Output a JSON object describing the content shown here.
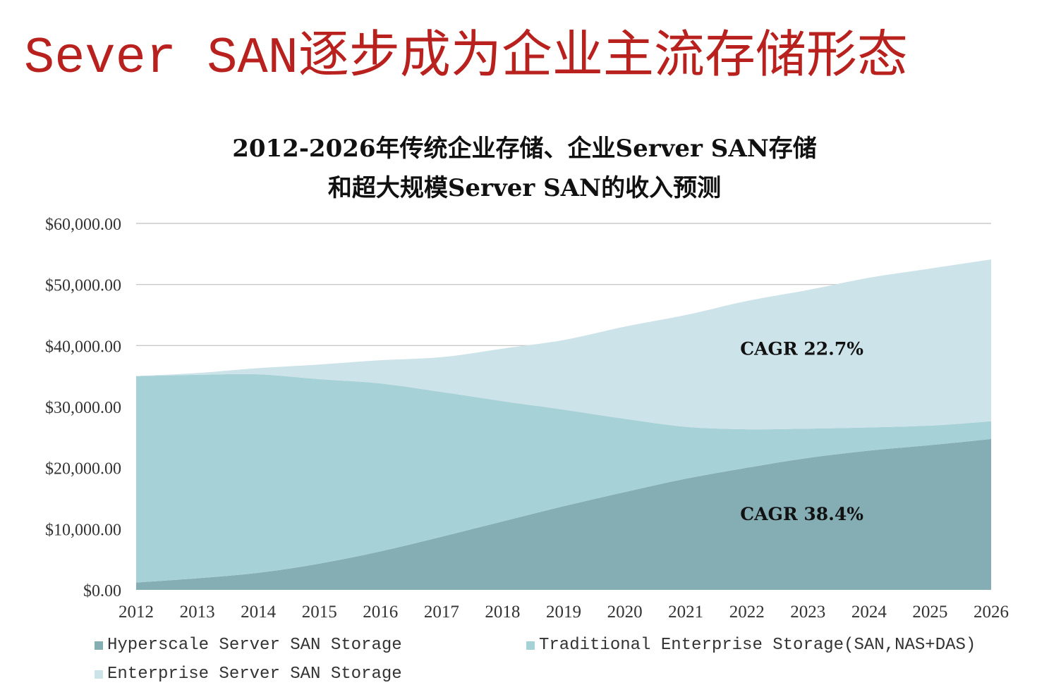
{
  "slide_title": "Sever SAN逐步成为企业主流存储形态",
  "colors": {
    "title": "#b8211e",
    "hyperscale": "#85aeb4",
    "traditional": "#a6d1d7",
    "enterprise": "#cce3e9",
    "grid": "#bfbfbf"
  },
  "chart_data": {
    "type": "area",
    "stacked": true,
    "title_line1": "2012-2026年传统企业存储、企业Server SAN存储",
    "title_line2": "和超大规模Server SAN的收入预测",
    "x": [
      2012,
      2013,
      2014,
      2015,
      2016,
      2017,
      2018,
      2019,
      2020,
      2021,
      2022,
      2023,
      2024,
      2025,
      2026
    ],
    "ylim": [
      0,
      60000
    ],
    "y_ticks": [
      "$60,000.00",
      "$50,000.00",
      "$40,000.00",
      "$30,000.00",
      "$20,000.00",
      "$10,000.00",
      "$0.00"
    ],
    "y_tick_values": [
      60000,
      50000,
      40000,
      30000,
      20000,
      10000,
      0
    ],
    "grid": true,
    "legend_position": "bottom",
    "series": [
      {
        "name": "Hyperscale Server SAN Storage",
        "color": "#85aeb4",
        "values": [
          1200,
          1900,
          2800,
          4300,
          6300,
          8700,
          11200,
          13700,
          16000,
          18200,
          20000,
          21600,
          22800,
          23700,
          24700
        ]
      },
      {
        "name": "Traditional Enterprise Storage(SAN,NAS+DAS)",
        "color": "#a6d1d7",
        "values": [
          33800,
          33300,
          32500,
          30200,
          27500,
          23700,
          19700,
          15800,
          12000,
          8500,
          6300,
          4800,
          3800,
          3200,
          2900
        ]
      },
      {
        "name": "Enterprise Server SAN Storage",
        "color": "#cce3e9",
        "values": [
          0,
          300,
          1000,
          2400,
          3800,
          5700,
          8600,
          11400,
          15100,
          18300,
          21000,
          22700,
          24500,
          25700,
          26500
        ]
      }
    ],
    "annotations": [
      {
        "text": "CAGR 22.7%",
        "x": 2022.9,
        "y": 38500
      },
      {
        "text": "CAGR 38.4%",
        "x": 2022.9,
        "y": 11400
      }
    ]
  }
}
